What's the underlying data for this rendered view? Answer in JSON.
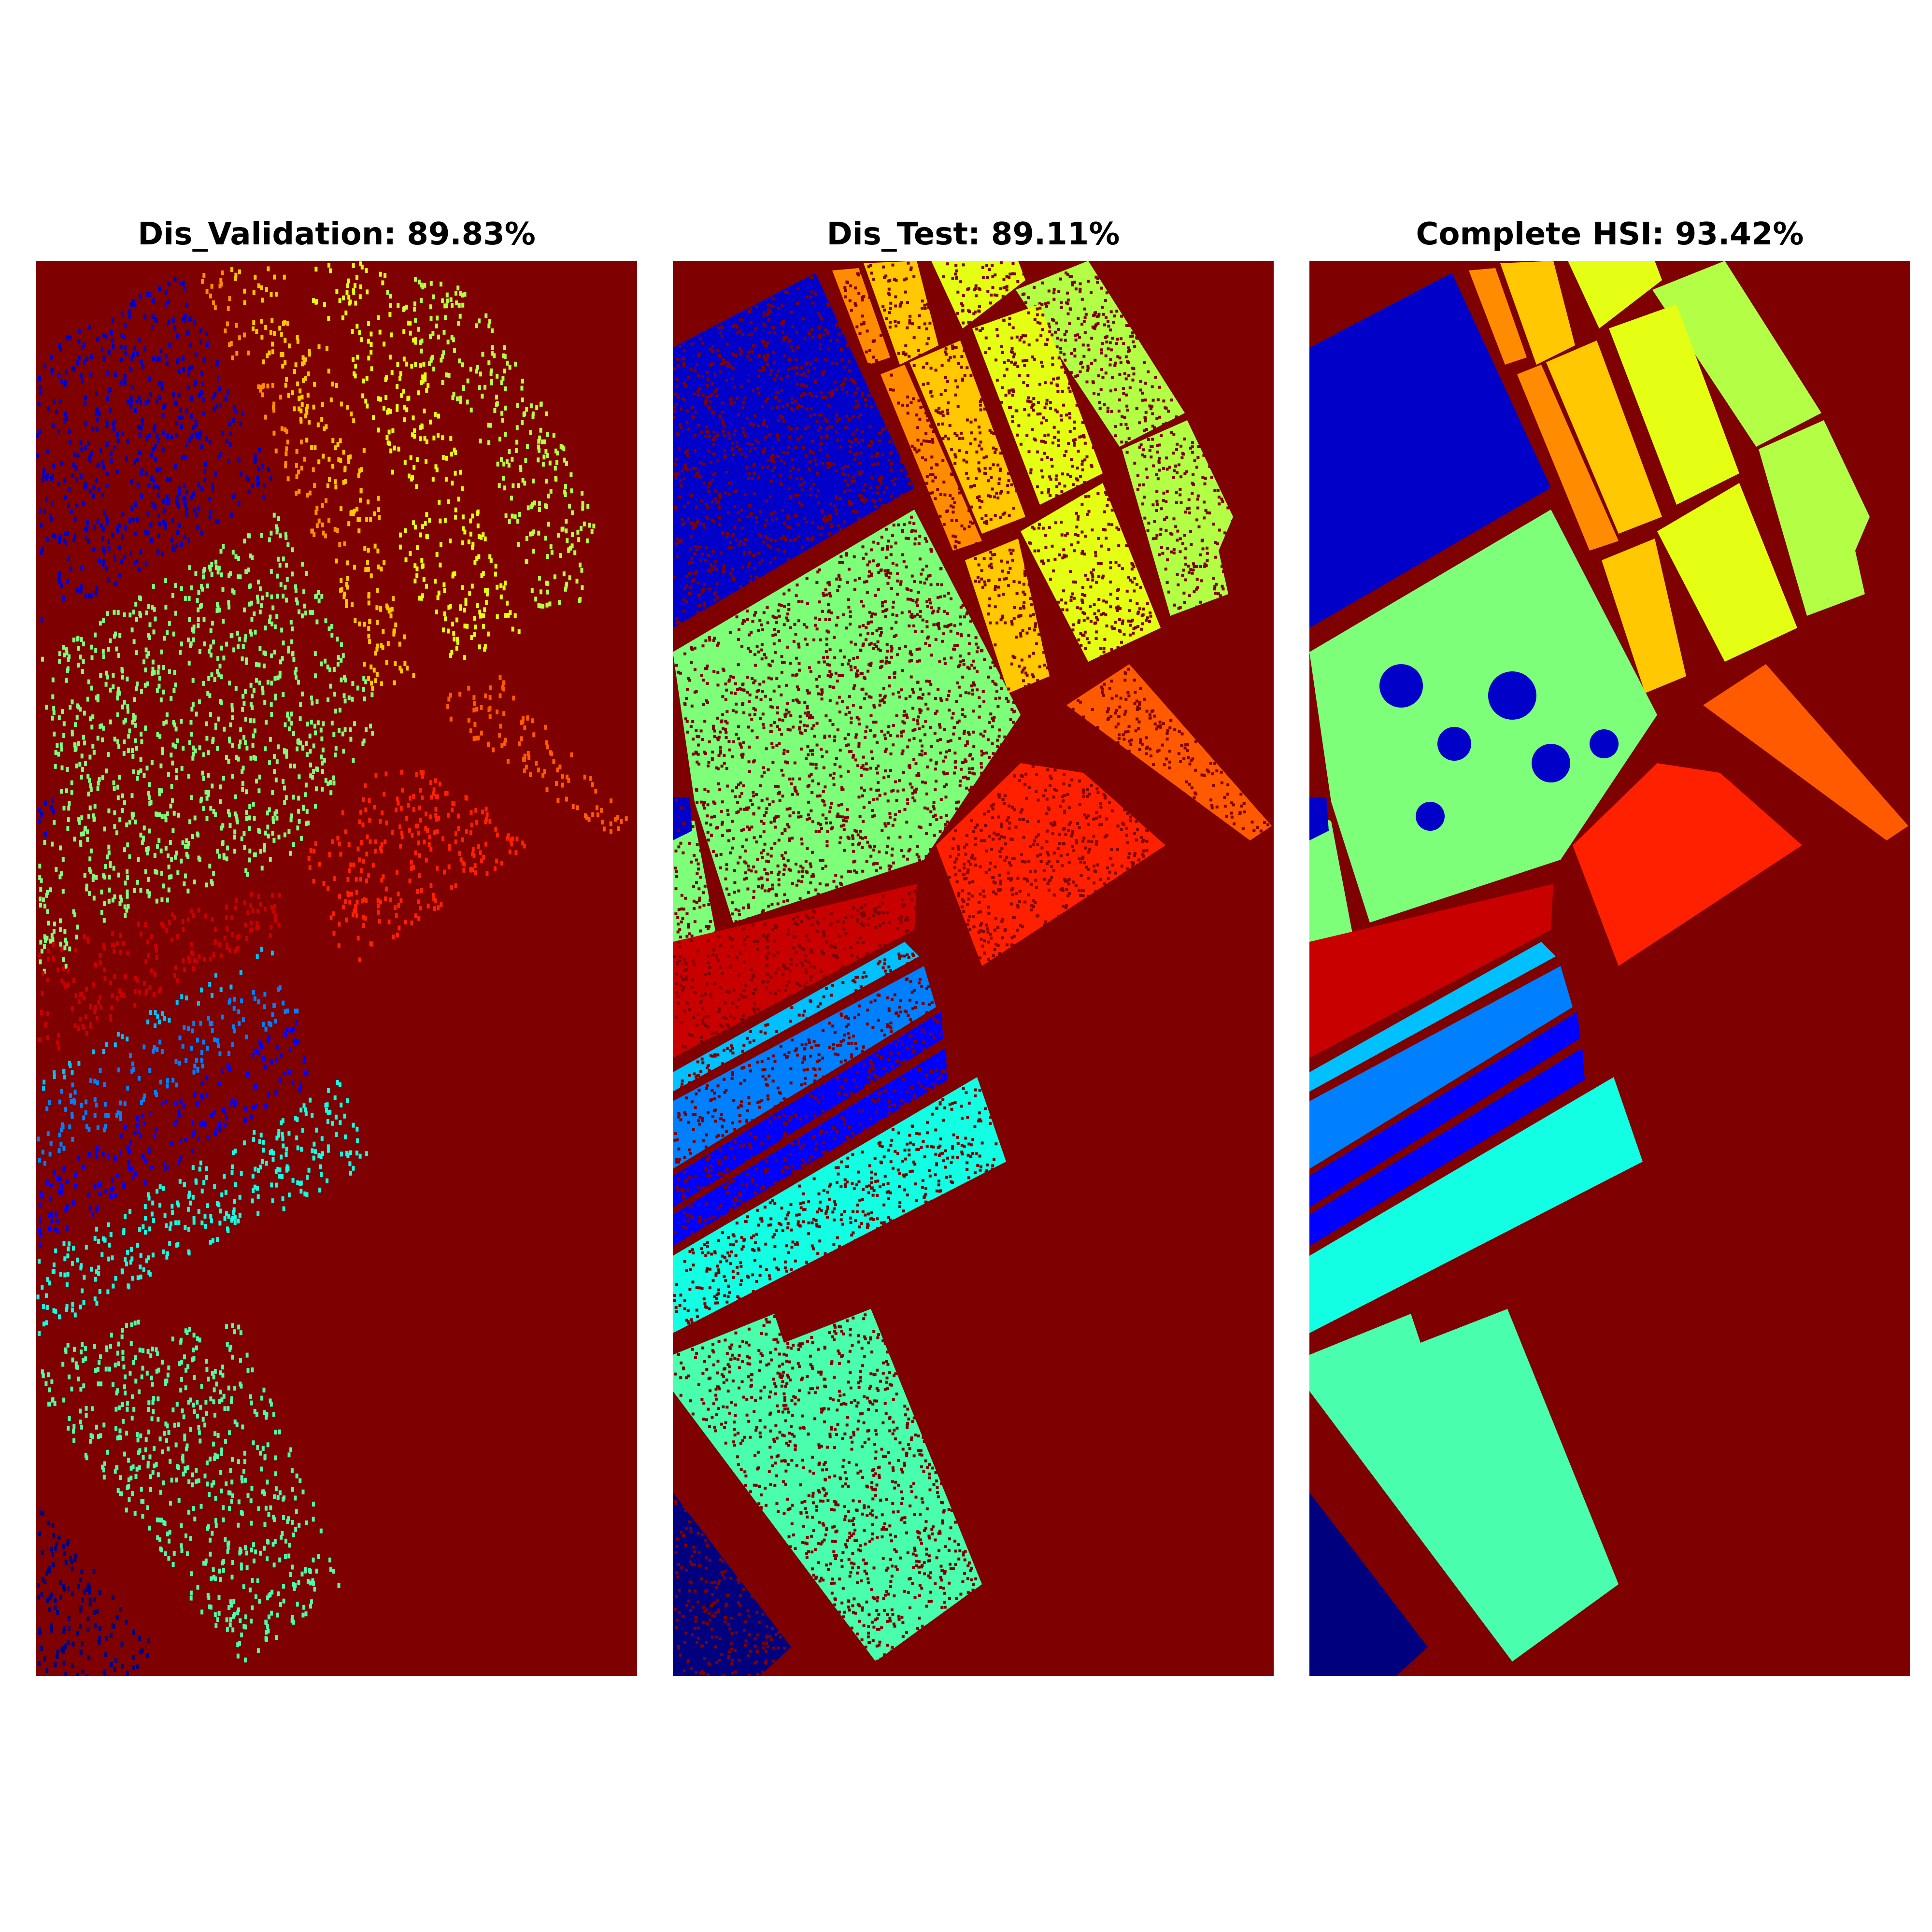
{
  "panels": [
    {
      "id": "validation",
      "title": "Dis_Validation: 89.83%",
      "mode": "sparse"
    },
    {
      "id": "test",
      "title": "Dis_Test: 89.11%",
      "mode": "noisy"
    },
    {
      "id": "complete",
      "title": "Complete HSI: 93.42%",
      "mode": "solid"
    }
  ],
  "colors": {
    "background": "#7f0000",
    "navy": "#00007f",
    "blue_dark": "#0000c8",
    "blue": "#0000ff",
    "blue_mid": "#0080ff",
    "sky": "#00c0ff",
    "cyan": "#12ffe4",
    "aqua": "#49ffad",
    "green": "#7dff7a",
    "lime": "#b2ff46",
    "yellow": "#e4ff13",
    "gold": "#ffc800",
    "orange": "#ff8c00",
    "orange_red": "#ff5a00",
    "red": "#ff2000",
    "crimson": "#c80000"
  }
}
